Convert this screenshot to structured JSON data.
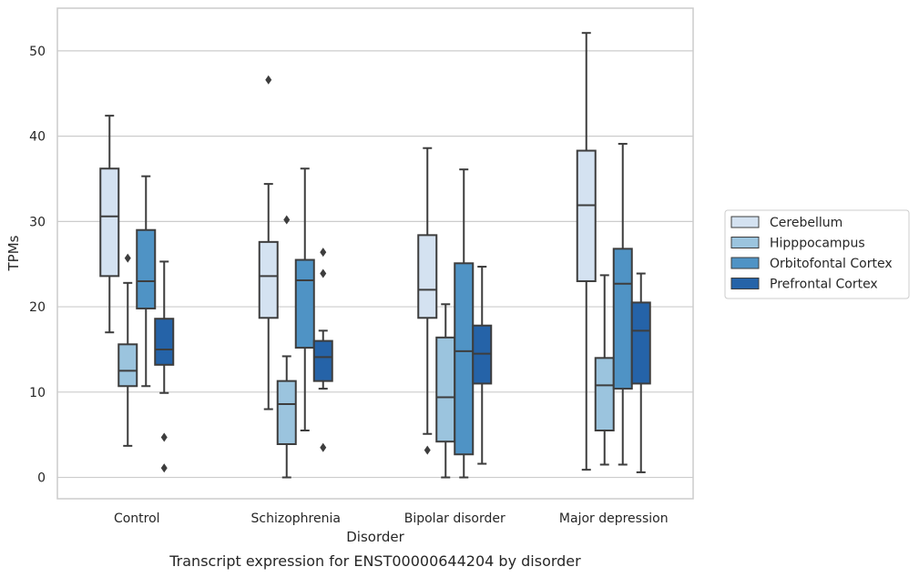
{
  "chart_data": {
    "type": "box",
    "xlabel": "Disorder",
    "ylabel": "TPMs",
    "caption": "Transcript expression for ENST00000644204 by disorder",
    "categories": [
      "Control",
      "Schizophrenia",
      "Bipolar disorder",
      "Major depression"
    ],
    "ylim": [
      -2.5,
      55
    ],
    "yticks": [
      0,
      10,
      20,
      30,
      40,
      50
    ],
    "grid": "horizontal",
    "legend_position": "right",
    "colors": {
      "Cerebellum": "#d4e2f1",
      "Hipppocampus": "#9bc4de",
      "Orbitofontal Cortex": "#4f93c5",
      "Prefrontal Cortex": "#2563a8"
    },
    "series": [
      {
        "name": "Cerebellum",
        "boxes": [
          {
            "whisker_low": 17.0,
            "q1": 23.6,
            "median": 30.6,
            "q3": 36.2,
            "whisker_high": 42.4,
            "outliers": []
          },
          {
            "whisker_low": 8.0,
            "q1": 18.7,
            "median": 23.6,
            "q3": 27.6,
            "whisker_high": 34.4,
            "outliers": [
              46.6
            ]
          },
          {
            "whisker_low": 5.1,
            "q1": 18.7,
            "median": 22.0,
            "q3": 28.4,
            "whisker_high": 38.6,
            "outliers": [
              3.2
            ]
          },
          {
            "whisker_low": 0.9,
            "q1": 23.0,
            "median": 31.9,
            "q3": 38.3,
            "whisker_high": 52.1,
            "outliers": []
          }
        ]
      },
      {
        "name": "Hipppocampus",
        "boxes": [
          {
            "whisker_low": 3.7,
            "q1": 10.7,
            "median": 12.5,
            "q3": 15.6,
            "whisker_high": 22.8,
            "outliers": [
              25.7
            ]
          },
          {
            "whisker_low": 0.0,
            "q1": 3.9,
            "median": 8.6,
            "q3": 11.3,
            "whisker_high": 14.2,
            "outliers": [
              30.2
            ]
          },
          {
            "whisker_low": 0.0,
            "q1": 4.2,
            "median": 9.4,
            "q3": 16.4,
            "whisker_high": 20.3,
            "outliers": []
          },
          {
            "whisker_low": 1.5,
            "q1": 5.5,
            "median": 10.8,
            "q3": 14.0,
            "whisker_high": 23.7,
            "outliers": []
          }
        ]
      },
      {
        "name": "Orbitofontal Cortex",
        "boxes": [
          {
            "whisker_low": 10.7,
            "q1": 19.8,
            "median": 23.0,
            "q3": 29.0,
            "whisker_high": 35.3,
            "outliers": []
          },
          {
            "whisker_low": 5.5,
            "q1": 15.2,
            "median": 23.1,
            "q3": 25.5,
            "whisker_high": 36.2,
            "outliers": []
          },
          {
            "whisker_low": 0.0,
            "q1": 2.7,
            "median": 14.8,
            "q3": 25.1,
            "whisker_high": 36.1,
            "outliers": []
          },
          {
            "whisker_low": 1.5,
            "q1": 10.4,
            "median": 22.7,
            "q3": 26.8,
            "whisker_high": 39.1,
            "outliers": []
          }
        ]
      },
      {
        "name": "Prefrontal Cortex",
        "boxes": [
          {
            "whisker_low": 9.9,
            "q1": 13.2,
            "median": 15.0,
            "q3": 18.6,
            "whisker_high": 25.3,
            "outliers": [
              4.7,
              1.1
            ]
          },
          {
            "whisker_low": 10.4,
            "q1": 11.3,
            "median": 14.1,
            "q3": 16.0,
            "whisker_high": 17.2,
            "outliers": [
              26.4,
              23.9,
              3.5
            ]
          },
          {
            "whisker_low": 1.6,
            "q1": 11.0,
            "median": 14.5,
            "q3": 17.8,
            "whisker_high": 24.7,
            "outliers": []
          },
          {
            "whisker_low": 0.6,
            "q1": 11.0,
            "median": 17.2,
            "q3": 20.5,
            "whisker_high": 23.9,
            "outliers": []
          }
        ]
      }
    ]
  }
}
